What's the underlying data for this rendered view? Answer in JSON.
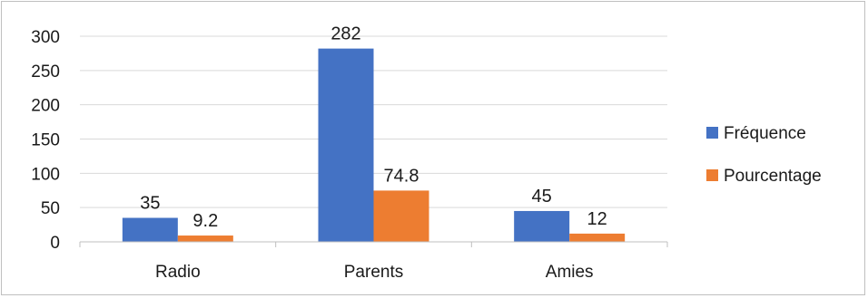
{
  "chart_data": {
    "type": "bar",
    "categories": [
      "Radio",
      "Parents",
      "Amies"
    ],
    "series": [
      {
        "name": "Fréquence",
        "color": "#4472C4",
        "values": [
          35,
          282,
          45
        ],
        "labels": [
          "35",
          "282",
          "45"
        ]
      },
      {
        "name": "Pourcentage",
        "color": "#ED7D31",
        "values": [
          9.2,
          74.8,
          12
        ],
        "labels": [
          "9.2",
          "74.8",
          "12"
        ]
      }
    ],
    "title": "",
    "xlabel": "",
    "ylabel": "",
    "ylim": [
      0,
      300
    ],
    "yticks": [
      "0",
      "50",
      "100",
      "150",
      "200",
      "250",
      "300"
    ],
    "grid": true,
    "legend": "right",
    "data_labels": true
  }
}
